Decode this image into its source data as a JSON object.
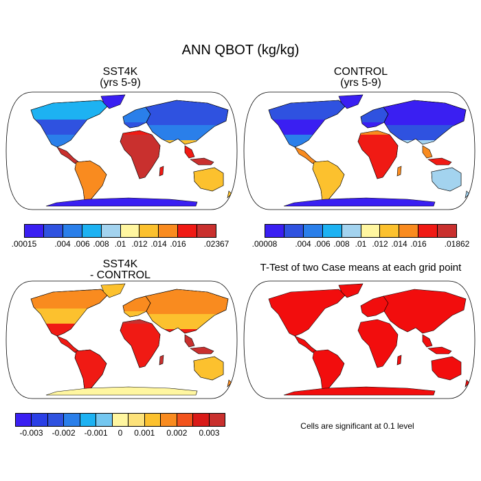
{
  "title": "ANN QBOT (kg/kg)",
  "panels": [
    {
      "id": "sst4k",
      "title_line1": "SST4K",
      "title_line2": "(yrs 5-9)"
    },
    {
      "id": "control",
      "title_line1": "CONTROL",
      "title_line2": "(yrs 5-9)"
    },
    {
      "id": "diff",
      "title_line1": "SST4K",
      "title_line2": "- CONTROL"
    },
    {
      "id": "ttest",
      "title_line1": "T-Test of two Case means at each grid point"
    }
  ],
  "colorbars": {
    "sst4k": {
      "colors": [
        "#3a1ff2",
        "#2f52e0",
        "#2a7fea",
        "#1db2f2",
        "#a3d3ef",
        "#fff6a0",
        "#fcc12e",
        "#f98b1f",
        "#f01a14",
        "#c9302e"
      ],
      "labels": [
        ".00015",
        ".004",
        ".006",
        ".008",
        ".01",
        ".012",
        ".014",
        ".016",
        ".02367"
      ]
    },
    "control": {
      "colors": [
        "#3a1ff2",
        "#2f52e0",
        "#2a7fea",
        "#1db2f2",
        "#a3d3ef",
        "#fff6a0",
        "#fcc12e",
        "#f98b1f",
        "#f01a14",
        "#c9302e"
      ],
      "labels": [
        ".00008",
        ".004",
        ".006",
        ".008",
        ".01",
        ".012",
        ".014",
        ".016",
        ".01862"
      ]
    },
    "diff": {
      "colors": [
        "#3a1ff2",
        "#2a3fe6",
        "#2f52e0",
        "#2a7fea",
        "#1db2f2",
        "#74c7f0",
        "#fff6a0",
        "#fde27a",
        "#fcc12e",
        "#f98b1f",
        "#f2531c",
        "#d91a18",
        "#c9302e"
      ],
      "labels": [
        "-0.003",
        "-0.002",
        "-0.001",
        "0",
        "0.001",
        "0.002",
        "0.003"
      ]
    }
  },
  "significance_note": "Cells are significant at 0.1 level",
  "palette": {
    "deep_blue": "#3a1ff2",
    "blue": "#2f52e0",
    "light_blue": "#2a7fea",
    "cyan": "#1db2f2",
    "pale_blue": "#a3d3ef",
    "pale_yellow": "#fff6a0",
    "yellow": "#fcc12e",
    "orange": "#f98b1f",
    "red": "#f01a14",
    "dark_red": "#c9302e",
    "sig_red": "#f20d0d"
  }
}
